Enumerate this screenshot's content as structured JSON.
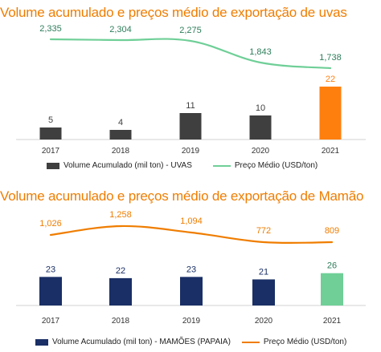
{
  "chart_data": [
    {
      "type": "bar",
      "title": "Volume acumulado e preços médio de exportação de uvas",
      "categories": [
        "2017",
        "2018",
        "2019",
        "2020",
        "2021"
      ],
      "series": [
        {
          "name": "Volume Acumulado (mil ton) - UVAS",
          "type": "bar",
          "values": [
            5,
            4,
            11,
            10,
            22
          ],
          "colors": [
            "#3f3f3f",
            "#3f3f3f",
            "#3f3f3f",
            "#3f3f3f",
            "#ff7f0e"
          ]
        },
        {
          "name": "Preço Médio (USD/ton)",
          "type": "line",
          "color": "#6fcf97",
          "values": [
            2335,
            2304,
            2275,
            1843,
            1738
          ],
          "labels": [
            "2,335",
            "2,304",
            "2,275",
            "1,843",
            "1,738"
          ]
        }
      ],
      "bar_label_colors": [
        "#3f3f3f",
        "#3f3f3f",
        "#3f3f3f",
        "#3f3f3f",
        "#ff7f0e"
      ],
      "line_label_color": "#2e7d5b",
      "ylim": [
        0,
        25
      ],
      "line_ylim": [
        0,
        2500
      ]
    },
    {
      "type": "bar",
      "title": "Volume acumulado e preços médio de exportação de Mamão",
      "categories": [
        "2017",
        "2018",
        "2019",
        "2020",
        "2021"
      ],
      "series": [
        {
          "name": "Volume Acumulado (mil ton) - MAMÕES (PAPAIA)",
          "type": "bar",
          "values": [
            23,
            22,
            23,
            21,
            26
          ],
          "colors": [
            "#1a2f66",
            "#1a2f66",
            "#1a2f66",
            "#1a2f66",
            "#6fcf97"
          ]
        },
        {
          "name": "Preço Médio (USD/ton)",
          "type": "line",
          "color": "#ef7d00",
          "values": [
            1026,
            1258,
            1094,
            772,
            809
          ],
          "labels": [
            "1,026",
            "1,258",
            "1,094",
            "772",
            "809"
          ]
        }
      ],
      "bar_label_colors": [
        "#1a2f66",
        "#1a2f66",
        "#1a2f66",
        "#1a2f66",
        "#2e7d5b"
      ],
      "line_label_color": "#ef7d00",
      "ylim": [
        0,
        50
      ],
      "line_ylim": [
        0,
        1400
      ]
    }
  ]
}
